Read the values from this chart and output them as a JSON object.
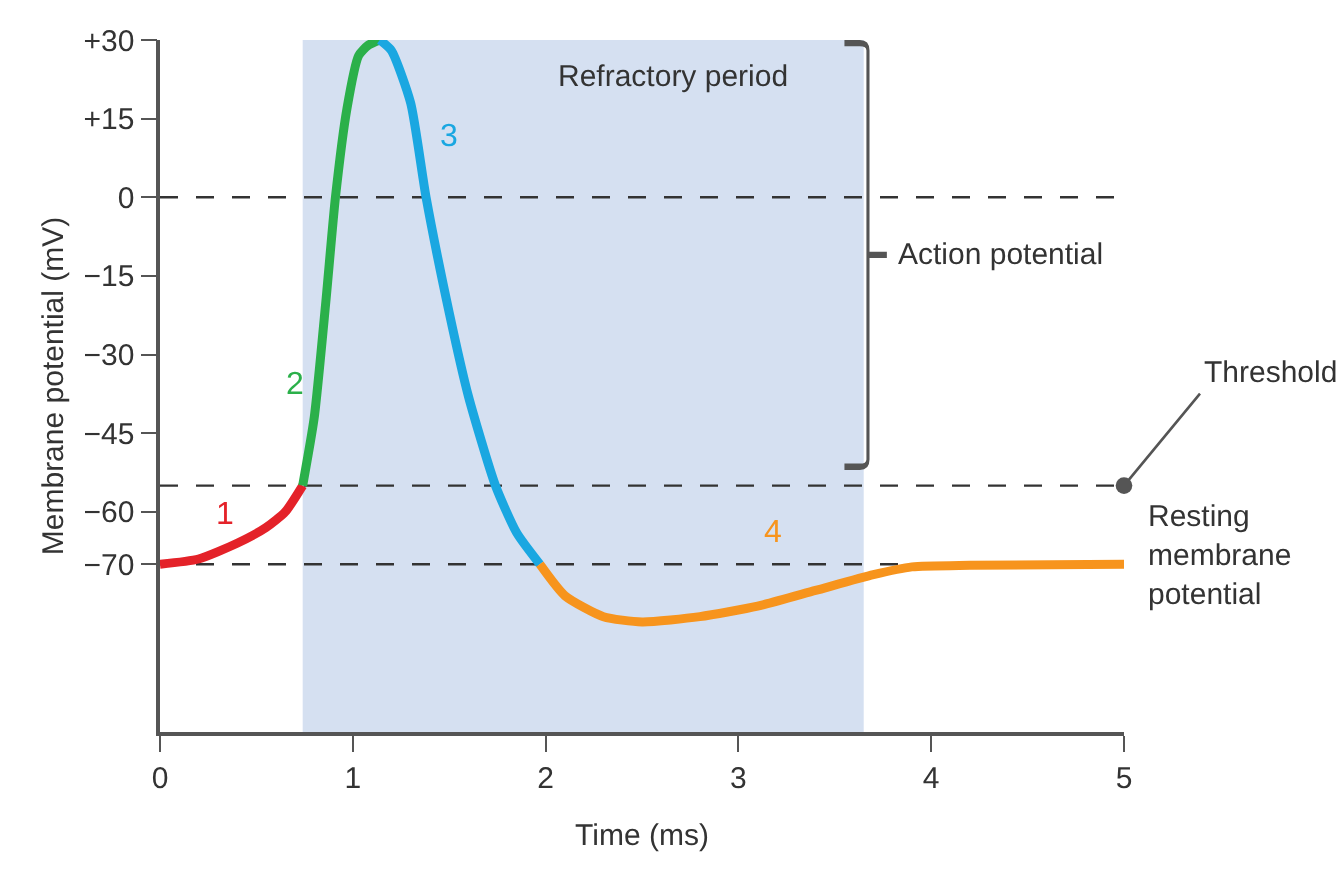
{
  "chart_data": {
    "type": "line",
    "xlabel": "Time (ms)",
    "ylabel": "Membrane potential (mV)",
    "xlim": [
      0,
      5
    ],
    "xticks": [
      0,
      1,
      2,
      3,
      4,
      5
    ],
    "ylim": [
      -102,
      30
    ],
    "yticks": [
      {
        "value": 30,
        "label": "+30"
      },
      {
        "value": 15,
        "label": "+15"
      },
      0,
      {
        "value": -15,
        "label": "−15"
      },
      {
        "value": -30,
        "label": "−30"
      },
      {
        "value": -45,
        "label": "−45"
      },
      {
        "value": -60,
        "label": "−60"
      },
      {
        "value": -70,
        "label": "−70"
      }
    ],
    "series": [
      {
        "name": "1",
        "color": "#e42229",
        "x": [
          0,
          0.2,
          0.4,
          0.55,
          0.65,
          0.74
        ],
        "values": [
          -70,
          -69,
          -66,
          -63,
          -60,
          -55
        ]
      },
      {
        "name": "2",
        "color": "#2bb04a",
        "x": [
          0.74,
          0.8,
          0.86,
          0.91,
          0.97,
          1.03,
          1.08,
          1.14
        ],
        "values": [
          -55,
          -42,
          -20,
          0,
          17,
          27,
          29,
          30
        ]
      },
      {
        "name": "3",
        "color": "#1aa7e1",
        "x": [
          1.14,
          1.2,
          1.3,
          1.38,
          1.5,
          1.6,
          1.74,
          1.85,
          1.97
        ],
        "values": [
          30,
          28,
          18,
          0,
          -22,
          -38,
          -55,
          -64,
          -70
        ]
      },
      {
        "name": "4",
        "color": "#f7941d",
        "x": [
          1.97,
          2.1,
          2.3,
          2.5,
          2.8,
          3.1,
          3.4,
          3.7,
          3.9,
          4.2,
          5.0
        ],
        "values": [
          -70,
          -76,
          -80,
          -81,
          -80,
          -78,
          -75,
          -72,
          -70.5,
          -70.2,
          -70
        ]
      }
    ],
    "bands": [
      {
        "axis": "x",
        "from": 0.74,
        "to": 3.65,
        "label": "Refractory period",
        "color": "#d5e0f1"
      }
    ],
    "annotations": [
      "Action potential"
    ],
    "ref_lines": [
      {
        "axis": "y",
        "value": 0,
        "line_style": "dashed",
        "color": "#333333"
      },
      {
        "axis": "y",
        "value": -55,
        "label": "Threshold",
        "line_style": "dashed",
        "color": "#333333"
      },
      {
        "axis": "y",
        "value": -70,
        "label": "Resting membrane potential",
        "line_style": "dashed",
        "color": "#333333"
      }
    ],
    "line_style": "solid",
    "marker": "none",
    "grid": false,
    "legend": false
  }
}
